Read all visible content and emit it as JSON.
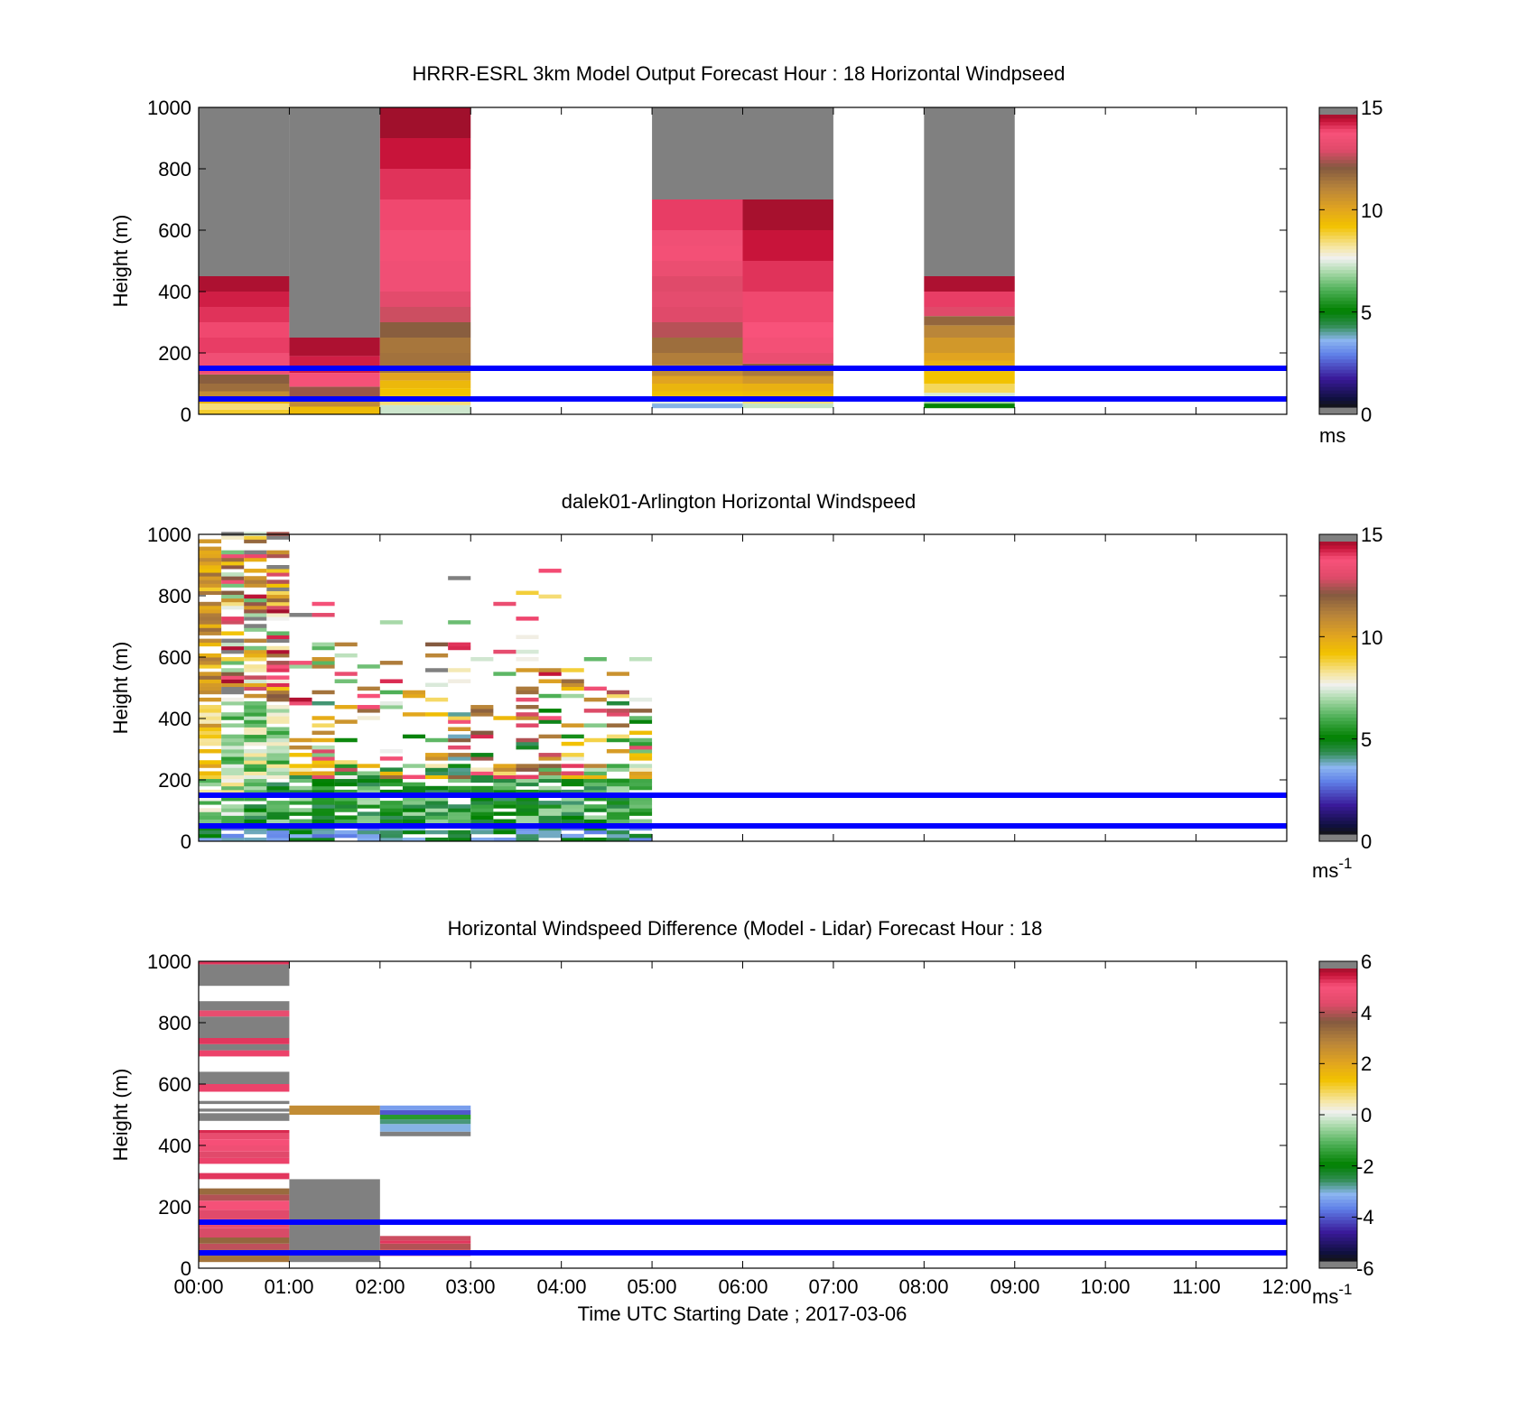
{
  "x_axis": {
    "ticks": [
      "00:00",
      "01:00",
      "02:00",
      "03:00",
      "04:00",
      "05:00",
      "06:00",
      "07:00",
      "08:00",
      "09:00",
      "10:00",
      "11:00",
      "12:00"
    ],
    "label": "Time UTC  Starting Date ; 2017-03-06"
  },
  "chart_data": [
    {
      "type": "heatmap",
      "title": "HRRR-ESRL 3km Model Output   Forecast Hour : 18 Horizontal Windpseed",
      "ylabel": "Height (m)",
      "ylim": [
        0,
        1000
      ],
      "xlim_hours": [
        0,
        12
      ],
      "yticks": [
        "0",
        "200",
        "400",
        "600",
        "800",
        "1000"
      ],
      "colorbar": {
        "ticks": [
          "0",
          "5",
          "10",
          "15"
        ],
        "range": [
          0,
          15
        ],
        "unit_label": "ms",
        "unit_superscript": ""
      },
      "reference_lines_m": [
        50,
        150
      ],
      "reference_line_color": "#0000ff",
      "columns": [
        {
          "x0": 0,
          "x1": 1,
          "cells": [
            {
              "z0": 0,
              "z1": 15,
              "v": 9
            },
            {
              "z0": 15,
              "z1": 35,
              "v": 8.5
            },
            {
              "z0": 35,
              "z1": 55,
              "v": 9.8
            },
            {
              "z0": 55,
              "z1": 75,
              "v": 11
            },
            {
              "z0": 75,
              "z1": 100,
              "v": 11.8
            },
            {
              "z0": 100,
              "z1": 130,
              "v": 12.2
            },
            {
              "z0": 130,
              "z1": 200,
              "v": 13.8
            },
            {
              "z0": 200,
              "z1": 250,
              "v": 14.3
            },
            {
              "z0": 250,
              "z1": 300,
              "v": 14.2
            },
            {
              "z0": 300,
              "z1": 350,
              "v": 14.4
            },
            {
              "z0": 350,
              "z1": 400,
              "v": 14.6
            },
            {
              "z0": 400,
              "z1": 450,
              "v": 14.9
            },
            {
              "z0": 450,
              "z1": 1000,
              "v": 15.5
            }
          ]
        },
        {
          "x0": 1,
          "x1": 2,
          "cells": [
            {
              "z0": 0,
              "z1": 25,
              "v": 9.5
            },
            {
              "z0": 25,
              "z1": 50,
              "v": 11
            },
            {
              "z0": 50,
              "z1": 90,
              "v": 12.5
            },
            {
              "z0": 90,
              "z1": 135,
              "v": 14
            },
            {
              "z0": 135,
              "z1": 190,
              "v": 14.6
            },
            {
              "z0": 190,
              "z1": 250,
              "v": 14.9
            },
            {
              "z0": 250,
              "z1": 1000,
              "v": 15.5
            }
          ]
        },
        {
          "x0": 2,
          "x1": 3,
          "cells": [
            {
              "z0": 0,
              "z1": 30,
              "v": 7.3
            },
            {
              "z0": 30,
              "z1": 55,
              "v": 8.5
            },
            {
              "z0": 55,
              "z1": 85,
              "v": 9.3
            },
            {
              "z0": 85,
              "z1": 110,
              "v": 9.6
            },
            {
              "z0": 110,
              "z1": 135,
              "v": 10.2
            },
            {
              "z0": 135,
              "z1": 200,
              "v": 11.7
            },
            {
              "z0": 200,
              "z1": 250,
              "v": 11.6
            },
            {
              "z0": 250,
              "z1": 300,
              "v": 12.2
            },
            {
              "z0": 300,
              "z1": 350,
              "v": 13
            },
            {
              "z0": 350,
              "z1": 400,
              "v": 13.3
            },
            {
              "z0": 400,
              "z1": 500,
              "v": 13.8
            },
            {
              "z0": 500,
              "z1": 600,
              "v": 13.9
            },
            {
              "z0": 600,
              "z1": 700,
              "v": 14.2
            },
            {
              "z0": 700,
              "z1": 800,
              "v": 14.4
            },
            {
              "z0": 800,
              "z1": 900,
              "v": 14.7
            },
            {
              "z0": 900,
              "z1": 1000,
              "v": 15
            }
          ]
        },
        {
          "x0": 5,
          "x1": 6,
          "cells": [
            {
              "z0": 20,
              "z1": 35,
              "v": 3.5
            },
            {
              "z0": 35,
              "z1": 55,
              "v": 7.5
            },
            {
              "z0": 55,
              "z1": 75,
              "v": 9.4
            },
            {
              "z0": 75,
              "z1": 100,
              "v": 9.7
            },
            {
              "z0": 100,
              "z1": 125,
              "v": 10.2
            },
            {
              "z0": 125,
              "z1": 160,
              "v": 11
            },
            {
              "z0": 160,
              "z1": 200,
              "v": 11.4
            },
            {
              "z0": 200,
              "z1": 250,
              "v": 11.8
            },
            {
              "z0": 250,
              "z1": 300,
              "v": 12.8
            },
            {
              "z0": 300,
              "z1": 350,
              "v": 13.2
            },
            {
              "z0": 350,
              "z1": 400,
              "v": 13.4
            },
            {
              "z0": 400,
              "z1": 450,
              "v": 13.2
            },
            {
              "z0": 450,
              "z1": 500,
              "v": 13.6
            },
            {
              "z0": 500,
              "z1": 550,
              "v": 13.9
            },
            {
              "z0": 550,
              "z1": 600,
              "v": 13.8
            },
            {
              "z0": 600,
              "z1": 700,
              "v": 14.3
            },
            {
              "z0": 700,
              "z1": 1000,
              "v": 15.5
            }
          ]
        },
        {
          "x0": 6,
          "x1": 7,
          "cells": [
            {
              "z0": 20,
              "z1": 35,
              "v": 7.2
            },
            {
              "z0": 35,
              "z1": 55,
              "v": 8.5
            },
            {
              "z0": 55,
              "z1": 75,
              "v": 9.5
            },
            {
              "z0": 75,
              "z1": 100,
              "v": 9.8
            },
            {
              "z0": 100,
              "z1": 125,
              "v": 10.6
            },
            {
              "z0": 125,
              "z1": 145,
              "v": 11.5
            },
            {
              "z0": 145,
              "z1": 165,
              "v": 12.2
            },
            {
              "z0": 165,
              "z1": 200,
              "v": 13.6
            },
            {
              "z0": 200,
              "z1": 250,
              "v": 13.9
            },
            {
              "z0": 250,
              "z1": 300,
              "v": 14.1
            },
            {
              "z0": 300,
              "z1": 400,
              "v": 14.2
            },
            {
              "z0": 400,
              "z1": 500,
              "v": 14.4
            },
            {
              "z0": 500,
              "z1": 600,
              "v": 14.7
            },
            {
              "z0": 600,
              "z1": 700,
              "v": 14.95
            },
            {
              "z0": 700,
              "z1": 1000,
              "v": 15.5
            }
          ]
        },
        {
          "x0": 8,
          "x1": 9,
          "cells": [
            {
              "z0": 20,
              "z1": 35,
              "v": 5
            },
            {
              "z0": 35,
              "z1": 50,
              "v": 6.8
            },
            {
              "z0": 50,
              "z1": 70,
              "v": 7.4
            },
            {
              "z0": 70,
              "z1": 100,
              "v": 8.7
            },
            {
              "z0": 100,
              "z1": 140,
              "v": 9.3
            },
            {
              "z0": 140,
              "z1": 175,
              "v": 9.8
            },
            {
              "z0": 175,
              "z1": 200,
              "v": 10.2
            },
            {
              "z0": 200,
              "z1": 250,
              "v": 10.6
            },
            {
              "z0": 250,
              "z1": 290,
              "v": 11.2
            },
            {
              "z0": 290,
              "z1": 320,
              "v": 12
            },
            {
              "z0": 320,
              "z1": 350,
              "v": 13.2
            },
            {
              "z0": 350,
              "z1": 400,
              "v": 14.3
            },
            {
              "z0": 400,
              "z1": 450,
              "v": 14.9
            },
            {
              "z0": 450,
              "z1": 1000,
              "v": 15.5
            }
          ]
        }
      ]
    },
    {
      "type": "heatmap",
      "title": "dalek01-Arlington  Horizontal Windspeed",
      "ylabel": "Height (m)",
      "ylim": [
        0,
        1000
      ],
      "xlim_hours": [
        0,
        12
      ],
      "yticks": [
        "0",
        "200",
        "400",
        "600",
        "800",
        "1000"
      ],
      "colorbar": {
        "ticks": [
          "0",
          "5",
          "10",
          "15"
        ],
        "range": [
          0,
          15
        ],
        "unit_label": "ms",
        "unit_superscript": "-1"
      },
      "reference_lines_m": [
        50,
        150
      ],
      "reference_line_color": "#0000ff",
      "column_width_hours": 0.25,
      "data_extent_hours": [
        0,
        5
      ],
      "data_extent_m": [
        0,
        1000
      ],
      "note_values_ms": "approximate per-column vertical profiles, speeds 0–15"
    },
    {
      "type": "heatmap",
      "title": "Horizontal Windspeed Difference (Model - Lidar) Forecast Hour : 18",
      "ylabel": "Height (m)",
      "ylim": [
        0,
        1000
      ],
      "xlim_hours": [
        0,
        12
      ],
      "yticks": [
        "0",
        "200",
        "400",
        "600",
        "800",
        "1000"
      ],
      "colorbar": {
        "ticks": [
          "-6",
          "-4",
          "-2",
          "0",
          "2",
          "4",
          "6"
        ],
        "range": [
          -6,
          6
        ],
        "unit_label": "ms",
        "unit_superscript": "-1"
      },
      "reference_lines_m": [
        50,
        150
      ],
      "reference_line_color": "#0000ff",
      "columns": [
        {
          "x0": 0,
          "x1": 1,
          "cells": [
            {
              "z0": 20,
              "z1": 40,
              "v": 3.3
            },
            {
              "z0": 40,
              "z1": 60,
              "v": 3.9
            },
            {
              "z0": 60,
              "z1": 80,
              "v": 4.3
            },
            {
              "z0": 80,
              "z1": 100,
              "v": 3.6
            },
            {
              "z0": 100,
              "z1": 130,
              "v": 4.5
            },
            {
              "z0": 130,
              "z1": 160,
              "v": 4.8
            },
            {
              "z0": 160,
              "z1": 190,
              "v": 4.6
            },
            {
              "z0": 190,
              "z1": 220,
              "v": 5.2
            },
            {
              "z0": 220,
              "z1": 240,
              "v": 4.2
            },
            {
              "z0": 240,
              "z1": 260,
              "v": 3.5
            },
            {
              "z0": 290,
              "z1": 310,
              "v": 5.5
            },
            {
              "z0": 340,
              "z1": 360,
              "v": 5.4
            },
            {
              "z0": 360,
              "z1": 380,
              "v": 4.6
            },
            {
              "z0": 380,
              "z1": 400,
              "v": 5
            },
            {
              "z0": 400,
              "z1": 420,
              "v": 5.3
            },
            {
              "z0": 420,
              "z1": 440,
              "v": 4.8
            },
            {
              "z0": 440,
              "z1": 450,
              "v": 5.6
            },
            {
              "z0": 480,
              "z1": 505,
              "v": 6.4
            },
            {
              "z0": 510,
              "z1": 520,
              "v": 6.4
            },
            {
              "z0": 535,
              "z1": 545,
              "v": 6.4
            },
            {
              "z0": 575,
              "z1": 600,
              "v": 5.4
            },
            {
              "z0": 600,
              "z1": 640,
              "v": 6.4
            },
            {
              "z0": 690,
              "z1": 710,
              "v": 5.4
            },
            {
              "z0": 710,
              "z1": 730,
              "v": 6.4
            },
            {
              "z0": 730,
              "z1": 750,
              "v": 5.5
            },
            {
              "z0": 750,
              "z1": 820,
              "v": 6.4
            },
            {
              "z0": 820,
              "z1": 840,
              "v": 4.8
            },
            {
              "z0": 840,
              "z1": 870,
              "v": 6.4
            },
            {
              "z0": 920,
              "z1": 990,
              "v": 6.4
            },
            {
              "z0": 990,
              "z1": 1000,
              "v": 5.5
            }
          ]
        },
        {
          "x0": 1,
          "x1": 2,
          "cells": [
            {
              "z0": 20,
              "z1": 290,
              "v": 6.4
            },
            {
              "z0": 500,
              "z1": 530,
              "v": 2.8
            }
          ]
        },
        {
          "x0": 2,
          "x1": 3,
          "cells": [
            {
              "z0": 40,
              "z1": 60,
              "v": 4.8
            },
            {
              "z0": 60,
              "z1": 80,
              "v": 4.2
            },
            {
              "z0": 80,
              "z1": 90,
              "v": 5.5
            },
            {
              "z0": 90,
              "z1": 105,
              "v": 4.4
            },
            {
              "z0": 430,
              "z1": 445,
              "v": 6.4
            },
            {
              "z0": 445,
              "z1": 470,
              "v": -3.2
            },
            {
              "z0": 470,
              "z1": 485,
              "v": -2.8
            },
            {
              "z0": 485,
              "z1": 500,
              "v": -1.6
            },
            {
              "z0": 500,
              "z1": 515,
              "v": -4.2
            },
            {
              "z0": 515,
              "z1": 530,
              "v": -3.5
            }
          ]
        }
      ]
    }
  ]
}
